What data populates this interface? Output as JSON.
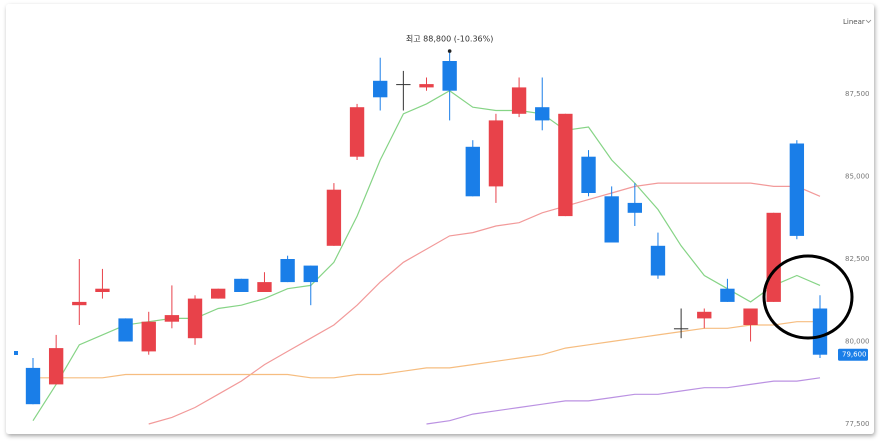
{
  "chart_data": {
    "type": "candlestick",
    "scale_label": "Linear",
    "annotation": {
      "text": "최고 88,800 (-10.36%)",
      "value": 88800
    },
    "price_tag": {
      "value": 79600,
      "label": "79,600"
    },
    "up_color": "#e8424a",
    "down_color": "#1a7ee8",
    "flat_color": "#333333",
    "open": [
      79200,
      78700,
      81100,
      81500,
      80700,
      79700,
      80600,
      80100,
      81300,
      81900,
      81500,
      82500,
      82300,
      82900,
      85600,
      87900,
      87800,
      87700,
      88500,
      85900,
      84700,
      86900,
      87100,
      83800,
      85600,
      84400,
      84200,
      82900,
      80400,
      80700,
      81600,
      80500,
      81200,
      86000,
      81000
    ],
    "high": [
      79500,
      80200,
      82500,
      82200,
      80700,
      80900,
      81700,
      81400,
      81600,
      81900,
      82100,
      82600,
      82300,
      84800,
      87200,
      88600,
      88200,
      88000,
      88800,
      86100,
      86900,
      88000,
      88000,
      86900,
      85800,
      84700,
      84800,
      83300,
      81000,
      81000,
      81900,
      81000,
      83900,
      86100,
      81400
    ],
    "low": [
      78100,
      78700,
      80500,
      81300,
      80000,
      79600,
      80400,
      79900,
      81300,
      81500,
      81500,
      81800,
      81100,
      82900,
      85500,
      87000,
      87000,
      87600,
      86700,
      84400,
      84200,
      86800,
      86400,
      83800,
      84400,
      83000,
      83500,
      81900,
      80100,
      80400,
      81200,
      80000,
      81200,
      83100,
      79500
    ],
    "close": [
      78100,
      79800,
      81200,
      81600,
      80000,
      80600,
      80800,
      81300,
      81600,
      81500,
      81800,
      81800,
      81800,
      84600,
      87100,
      87400,
      87800,
      87800,
      87600,
      84400,
      86700,
      87700,
      86700,
      86900,
      84500,
      83000,
      83900,
      82000,
      80400,
      80900,
      81200,
      81000,
      83900,
      83200,
      79600
    ],
    "series": [
      {
        "color": "#86d486",
        "values": [
          77600,
          78700,
          79900,
          80200,
          80500,
          80600,
          80700,
          80700,
          81000,
          81100,
          81300,
          81600,
          81700,
          82400,
          83800,
          85500,
          86900,
          87200,
          87600,
          87100,
          87000,
          87000,
          86900,
          86400,
          86500,
          85500,
          84800,
          84000,
          82900,
          82000,
          81600,
          81200,
          81700,
          82000,
          81700
        ]
      },
      {
        "color": "#f29a9a",
        "values": [
          null,
          null,
          null,
          null,
          null,
          77500,
          77700,
          78000,
          78400,
          78800,
          79300,
          79700,
          80100,
          80500,
          81100,
          81800,
          82400,
          82800,
          83200,
          83300,
          83500,
          83600,
          83900,
          84100,
          84300,
          84500,
          84700,
          84800,
          84800,
          84800,
          84800,
          84800,
          84700,
          84700,
          84400
        ]
      },
      {
        "color": "#f6bd80",
        "values": [
          78900,
          78900,
          78900,
          78900,
          79000,
          79000,
          79000,
          79000,
          79000,
          79000,
          79000,
          79000,
          78900,
          78900,
          79000,
          79000,
          79100,
          79200,
          79200,
          79300,
          79400,
          79500,
          79600,
          79800,
          79900,
          80000,
          80100,
          80200,
          80300,
          80400,
          80400,
          80500,
          80500,
          80600,
          80600
        ]
      },
      {
        "color": "#bb92e2",
        "values": [
          null,
          null,
          null,
          null,
          null,
          null,
          null,
          null,
          null,
          null,
          null,
          null,
          null,
          null,
          null,
          null,
          null,
          77500,
          77600,
          77800,
          77900,
          78000,
          78100,
          78200,
          78200,
          78300,
          78400,
          78400,
          78500,
          78600,
          78600,
          78700,
          78800,
          78800,
          78900
        ]
      }
    ],
    "ylim": [
      77000,
      90000
    ],
    "yticks": [
      {
        "value": 77500,
        "label": "77,500"
      },
      {
        "value": 80000,
        "label": "80,000"
      },
      {
        "value": 82500,
        "label": "82,500"
      },
      {
        "value": 85000,
        "label": "85,000"
      },
      {
        "value": 87500,
        "label": "87,500"
      }
    ]
  }
}
